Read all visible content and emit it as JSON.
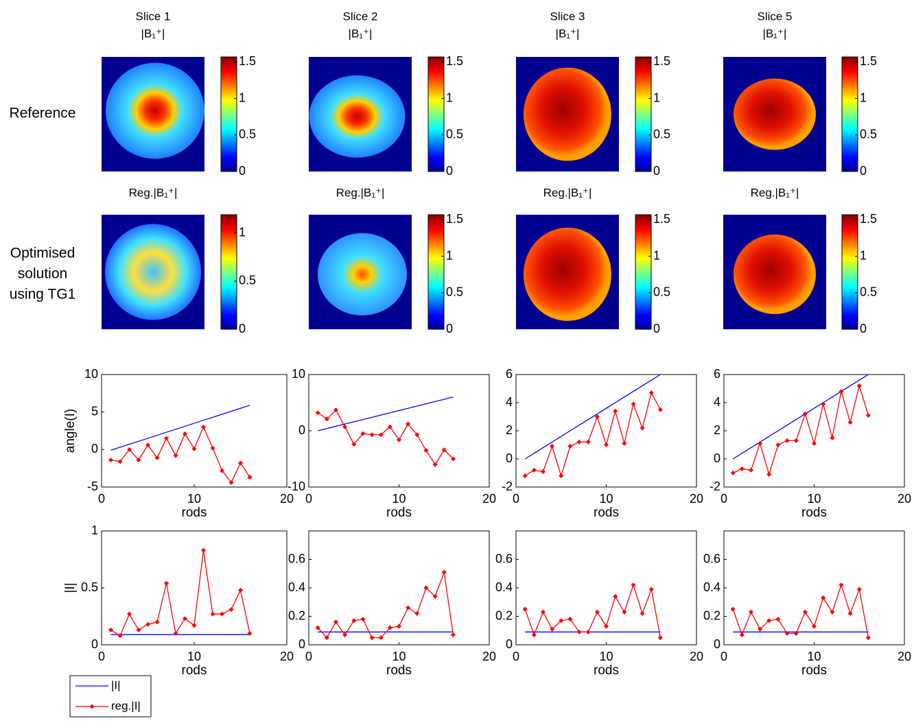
{
  "row_labels": [
    [
      "Reference"
    ],
    [
      "Optimised",
      "solution",
      "using TG1"
    ]
  ],
  "images": [
    {
      "slice": "Slice 1",
      "title": "|B₁⁺|",
      "reg_title": "Reg.|B₁⁺|",
      "ref_colorbar": {
        "lim": [
          0,
          1.57
        ],
        "ticks": [
          0,
          0.5,
          1,
          1.5
        ]
      },
      "reg_colorbar": {
        "lim": [
          0,
          1.19
        ],
        "ticks": [
          0,
          0.5,
          1
        ]
      }
    },
    {
      "slice": "Slice 2",
      "title": "|B₁⁺|",
      "reg_title": "Reg.|B₁⁺|",
      "ref_colorbar": {
        "lim": [
          0,
          1.57
        ],
        "ticks": [
          0,
          0.5,
          1,
          1.5
        ]
      },
      "reg_colorbar": {
        "lim": [
          0,
          1.57
        ],
        "ticks": [
          0,
          0.5,
          1,
          1.5
        ]
      }
    },
    {
      "slice": "Slice 3",
      "title": "|B₁⁺|",
      "reg_title": "Reg.|B₁⁺|",
      "ref_colorbar": {
        "lim": [
          0,
          1.57
        ],
        "ticks": [
          0,
          0.5,
          1,
          1.5
        ]
      },
      "reg_colorbar": {
        "lim": [
          0,
          1.57
        ],
        "ticks": [
          0,
          0.5,
          1,
          1.5
        ]
      }
    },
    {
      "slice": "Slice 5",
      "title": "|B₁⁺|",
      "reg_title": "Reg.|B₁⁺|",
      "ref_colorbar": {
        "lim": [
          0,
          1.57
        ],
        "ticks": [
          0,
          0.5,
          1,
          1.5
        ]
      },
      "reg_colorbar": {
        "lim": [
          0,
          1.57
        ],
        "ticks": [
          0,
          0.5,
          1,
          1.5
        ]
      }
    }
  ],
  "chart_data": [
    {
      "type": "line",
      "xlabel": "rods",
      "ylabel": "angle(I)",
      "x": [
        1,
        2,
        3,
        4,
        5,
        6,
        7,
        8,
        9,
        10,
        11,
        12,
        13,
        14,
        15,
        16
      ],
      "xlim": [
        0,
        20
      ],
      "xticks": [
        0,
        10,
        20
      ],
      "ylim": [
        -5,
        10
      ],
      "yticks": [
        -5,
        0,
        5,
        10
      ],
      "series": [
        {
          "name": "|I|",
          "color": "#0000ff",
          "values": [
            -0.1,
            0.3,
            0.7,
            1.1,
            1.5,
            1.9,
            2.3,
            2.7,
            3.1,
            3.5,
            3.9,
            4.3,
            4.7,
            5.1,
            5.5,
            5.9
          ]
        },
        {
          "name": "reg.|I|",
          "color": "#ff0000",
          "marker": "diamond",
          "values": [
            -1.4,
            -1.6,
            0,
            -1.4,
            0.6,
            -1.1,
            1.5,
            -0.8,
            2.1,
            0.1,
            3.0,
            0.2,
            -2.8,
            -4.4,
            -1.8,
            -3.7
          ]
        }
      ]
    },
    {
      "type": "line",
      "xlabel": "rods",
      "x": [
        1,
        2,
        3,
        4,
        5,
        6,
        7,
        8,
        9,
        10,
        11,
        12,
        13,
        14,
        15,
        16
      ],
      "xlim": [
        0,
        20
      ],
      "xticks": [
        0,
        10,
        20
      ],
      "ylim": [
        -10,
        10
      ],
      "yticks": [
        -10,
        0,
        10
      ],
      "series": [
        {
          "name": "|I|",
          "color": "#0000ff",
          "values": [
            0,
            0.4,
            0.8,
            1.2,
            1.6,
            2.0,
            2.4,
            2.8,
            3.2,
            3.6,
            4.0,
            4.4,
            4.8,
            5.2,
            5.6,
            6.0
          ]
        },
        {
          "name": "reg.|I|",
          "color": "#ff0000",
          "marker": "diamond",
          "values": [
            3.2,
            2.1,
            3.7,
            0.7,
            -2.4,
            -0.5,
            -0.7,
            -0.7,
            0.7,
            -1.6,
            1.2,
            -0.7,
            -3.5,
            -6.0,
            -3.4,
            -5.0
          ]
        }
      ]
    },
    {
      "type": "line",
      "xlabel": "rods",
      "x": [
        1,
        2,
        3,
        4,
        5,
        6,
        7,
        8,
        9,
        10,
        11,
        12,
        13,
        14,
        15,
        16
      ],
      "xlim": [
        0,
        20
      ],
      "xticks": [
        0,
        10,
        20
      ],
      "ylim": [
        -2,
        6
      ],
      "yticks": [
        -2,
        0,
        2,
        4,
        6
      ],
      "series": [
        {
          "name": "|I|",
          "color": "#0000ff",
          "values": [
            0,
            0.4,
            0.8,
            1.2,
            1.6,
            2.0,
            2.4,
            2.8,
            3.2,
            3.6,
            4.0,
            4.4,
            4.8,
            5.2,
            5.6,
            6.0
          ]
        },
        {
          "name": "reg.|I|",
          "color": "#ff0000",
          "marker": "diamond",
          "values": [
            -1.2,
            -0.8,
            -0.9,
            0.9,
            -1.2,
            0.9,
            1.2,
            1.2,
            3.0,
            1.0,
            3.4,
            1.1,
            3.9,
            2.2,
            4.7,
            3.5
          ]
        }
      ]
    },
    {
      "type": "line",
      "xlabel": "rods",
      "x": [
        1,
        2,
        3,
        4,
        5,
        6,
        7,
        8,
        9,
        10,
        11,
        12,
        13,
        14,
        15,
        16
      ],
      "xlim": [
        0,
        20
      ],
      "xticks": [
        0,
        10,
        20
      ],
      "ylim": [
        -2,
        6
      ],
      "yticks": [
        -2,
        0,
        2,
        4,
        6
      ],
      "series": [
        {
          "name": "|I|",
          "color": "#0000ff",
          "values": [
            0,
            0.4,
            0.8,
            1.2,
            1.6,
            2.0,
            2.4,
            2.8,
            3.2,
            3.6,
            4.0,
            4.4,
            4.8,
            5.2,
            5.6,
            6.0
          ]
        },
        {
          "name": "reg.|I|",
          "color": "#ff0000",
          "marker": "diamond",
          "values": [
            -1.0,
            -0.7,
            -0.8,
            1.1,
            -1.1,
            1.0,
            1.3,
            1.3,
            3.2,
            1.1,
            3.9,
            1.5,
            4.8,
            2.6,
            5.2,
            3.1
          ]
        }
      ]
    },
    {
      "type": "line",
      "xlabel": "rods",
      "ylabel": "|I|",
      "legend": "below-left",
      "x": [
        1,
        2,
        3,
        4,
        5,
        6,
        7,
        8,
        9,
        10,
        11,
        12,
        13,
        14,
        15,
        16
      ],
      "xlim": [
        0,
        20
      ],
      "xticks": [
        0,
        10,
        20
      ],
      "ylim": [
        0,
        1
      ],
      "yticks": [
        0,
        0.5,
        1
      ],
      "series": [
        {
          "name": "|I|",
          "color": "#0000ff",
          "values": [
            0.09,
            0.09,
            0.09,
            0.09,
            0.09,
            0.09,
            0.09,
            0.09,
            0.09,
            0.09,
            0.09,
            0.09,
            0.09,
            0.09,
            0.09,
            0.09
          ]
        },
        {
          "name": "reg.|I|",
          "color": "#ff0000",
          "marker": "diamond",
          "values": [
            0.13,
            0.08,
            0.27,
            0.13,
            0.18,
            0.2,
            0.54,
            0.1,
            0.23,
            0.17,
            0.83,
            0.27,
            0.27,
            0.31,
            0.48,
            0.1
          ]
        }
      ]
    },
    {
      "type": "line",
      "xlabel": "rods",
      "x": [
        1,
        2,
        3,
        4,
        5,
        6,
        7,
        8,
        9,
        10,
        11,
        12,
        13,
        14,
        15,
        16
      ],
      "xlim": [
        0,
        20
      ],
      "xticks": [
        0,
        10,
        20
      ],
      "ylim": [
        0,
        0.8
      ],
      "yticks": [
        0,
        0.2,
        0.4,
        0.6
      ],
      "series": [
        {
          "name": "|I|",
          "color": "#0000ff",
          "values": [
            0.09,
            0.09,
            0.09,
            0.09,
            0.09,
            0.09,
            0.09,
            0.09,
            0.09,
            0.09,
            0.09,
            0.09,
            0.09,
            0.09,
            0.09,
            0.09
          ]
        },
        {
          "name": "reg.|I|",
          "color": "#ff0000",
          "marker": "diamond",
          "values": [
            0.12,
            0.05,
            0.16,
            0.07,
            0.17,
            0.18,
            0.05,
            0.05,
            0.12,
            0.13,
            0.26,
            0.22,
            0.4,
            0.34,
            0.51,
            0.07
          ]
        }
      ]
    },
    {
      "type": "line",
      "xlabel": "rods",
      "x": [
        1,
        2,
        3,
        4,
        5,
        6,
        7,
        8,
        9,
        10,
        11,
        12,
        13,
        14,
        15,
        16
      ],
      "xlim": [
        0,
        20
      ],
      "xticks": [
        0,
        10,
        20
      ],
      "ylim": [
        0,
        0.8
      ],
      "yticks": [
        0,
        0.2,
        0.4,
        0.6
      ],
      "series": [
        {
          "name": "|I|",
          "color": "#0000ff",
          "values": [
            0.09,
            0.09,
            0.09,
            0.09,
            0.09,
            0.09,
            0.09,
            0.09,
            0.09,
            0.09,
            0.09,
            0.09,
            0.09,
            0.09,
            0.09,
            0.09
          ]
        },
        {
          "name": "reg.|I|",
          "color": "#ff0000",
          "marker": "diamond",
          "values": [
            0.25,
            0.07,
            0.23,
            0.11,
            0.17,
            0.18,
            0.09,
            0.09,
            0.23,
            0.13,
            0.34,
            0.23,
            0.42,
            0.22,
            0.39,
            0.05
          ]
        }
      ]
    },
    {
      "type": "line",
      "xlabel": "rods",
      "x": [
        1,
        2,
        3,
        4,
        5,
        6,
        7,
        8,
        9,
        10,
        11,
        12,
        13,
        14,
        15,
        16
      ],
      "xlim": [
        0,
        20
      ],
      "xticks": [
        0,
        10,
        20
      ],
      "ylim": [
        0,
        0.8
      ],
      "yticks": [
        0,
        0.2,
        0.4,
        0.6
      ],
      "series": [
        {
          "name": "|I|",
          "color": "#0000ff",
          "values": [
            0.09,
            0.09,
            0.09,
            0.09,
            0.09,
            0.09,
            0.09,
            0.09,
            0.09,
            0.09,
            0.09,
            0.09,
            0.09,
            0.09,
            0.09,
            0.09
          ]
        },
        {
          "name": "reg.|I|",
          "color": "#ff0000",
          "marker": "diamond",
          "values": [
            0.25,
            0.07,
            0.23,
            0.11,
            0.17,
            0.18,
            0.08,
            0.08,
            0.23,
            0.13,
            0.33,
            0.23,
            0.42,
            0.22,
            0.39,
            0.05
          ]
        }
      ]
    }
  ]
}
